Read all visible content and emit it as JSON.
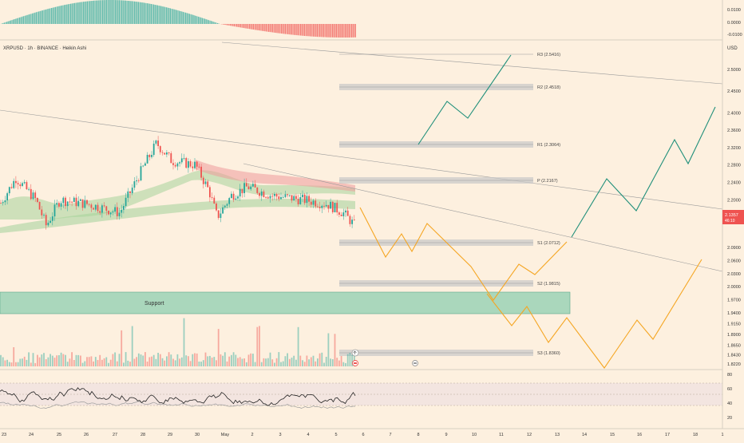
{
  "symbol_label": "XRPUSD · 1h · BINANCE · Heikin Ashi",
  "currency": "USD",
  "last_price": {
    "value": "2.1357",
    "sub": "46:10"
  },
  "x_axis_labels": [
    "23",
    "24",
    "25",
    "26",
    "27",
    "28",
    "29",
    "30",
    "May",
    "2",
    "3",
    "4",
    "5",
    "6",
    "7",
    "8",
    "9",
    "10",
    "11",
    "12",
    "13",
    "14",
    "15",
    "16",
    "17",
    "18",
    "1"
  ],
  "price_axis": [
    2.5,
    2.45,
    2.4,
    2.36,
    2.32,
    2.28,
    2.24,
    2.2,
    2.16,
    2.09,
    2.06,
    2.03,
    2.0,
    1.97,
    1.94,
    1.915,
    1.89,
    1.865,
    1.843,
    1.822
  ],
  "osc_axis": [
    "0.0100",
    "0.0000",
    "-0.0100"
  ],
  "rsi_axis": [
    "80",
    "60",
    "40",
    "20"
  ],
  "levels": [
    {
      "label": "R3 (2.5416)",
      "price": 2.5416
    },
    {
      "label": "R2 (2.4518)",
      "price": 2.4518
    },
    {
      "label": "R1 (2.3064)",
      "price": 2.3064
    },
    {
      "label": "P (2.2167)",
      "price": 2.2167
    },
    {
      "label": "S1 (2.0712)",
      "price": 2.0712
    },
    {
      "label": "S2 (1.9815)",
      "price": 1.9815
    },
    {
      "label": "S3 (1.8360)",
      "price": 1.836
    }
  ],
  "support_label": "Support",
  "chart_data": {
    "type": "line",
    "title": "XRPUSD · 1h · BINANCE · Heikin Ashi",
    "ylabel": "USD",
    "ylim": [
      1.822,
      2.55
    ],
    "series": [
      {
        "name": "",
        "x": [
          "23",
          "24",
          "25",
          "26",
          "27",
          "28",
          "29",
          "30",
          "May",
          "2",
          "3",
          "4",
          "5"
        ],
        "values": [
          2.19,
          2.25,
          2.14,
          2.2,
          2.19,
          2.18,
          2.33,
          2.28,
          2.2,
          2.22,
          2.2,
          2.19,
          2.14
        ]
      }
    ]
  },
  "colors": {
    "bg": "#fdf0df",
    "up": "#26a69a",
    "down": "#ef5350",
    "level_box": "#c8c8c8",
    "support": "#8ecfb0",
    "path_green": "#1f8f7a",
    "path_orange": "#f5a623"
  }
}
